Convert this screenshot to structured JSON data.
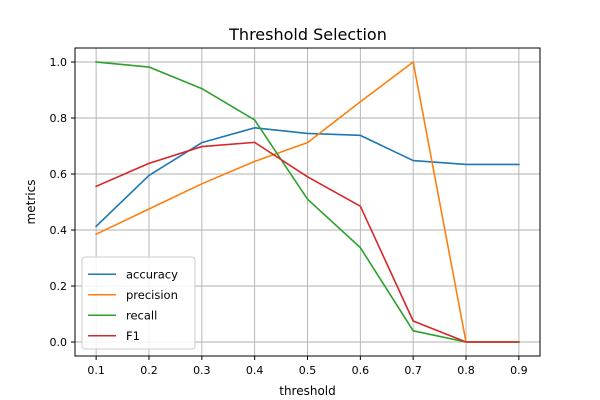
{
  "chart_data": {
    "type": "line",
    "title": "Threshold Selection",
    "xlabel": "threshold",
    "ylabel": "metrics",
    "x": [
      0.1,
      0.2,
      0.3,
      0.4,
      0.5,
      0.6,
      0.7,
      0.8,
      0.9
    ],
    "x_ticks": [
      "0.1",
      "0.2",
      "0.3",
      "0.4",
      "0.5",
      "0.6",
      "0.7",
      "0.8",
      "0.9"
    ],
    "y_ticks": [
      "0.0",
      "0.2",
      "0.4",
      "0.6",
      "0.8",
      "1.0"
    ],
    "xlim": [
      0.06,
      0.94
    ],
    "ylim": [
      -0.05,
      1.05
    ],
    "grid": true,
    "legend_position": "lower-left",
    "series": [
      {
        "name": "accuracy",
        "color": "#1f77b4",
        "values": [
          0.413,
          0.595,
          0.712,
          0.765,
          0.745,
          0.738,
          0.648,
          0.634,
          0.634
        ]
      },
      {
        "name": "precision",
        "color": "#ff7f0e",
        "values": [
          0.385,
          0.475,
          0.565,
          0.645,
          0.712,
          0.858,
          1.0,
          0.0,
          0.0
        ]
      },
      {
        "name": "recall",
        "color": "#2ca02c",
        "values": [
          1.0,
          0.982,
          0.905,
          0.793,
          0.51,
          0.337,
          0.04,
          0.0,
          0.0
        ]
      },
      {
        "name": "F1",
        "color": "#d62728",
        "values": [
          0.556,
          0.638,
          0.698,
          0.713,
          0.59,
          0.485,
          0.075,
          0.0,
          0.0
        ]
      }
    ]
  }
}
